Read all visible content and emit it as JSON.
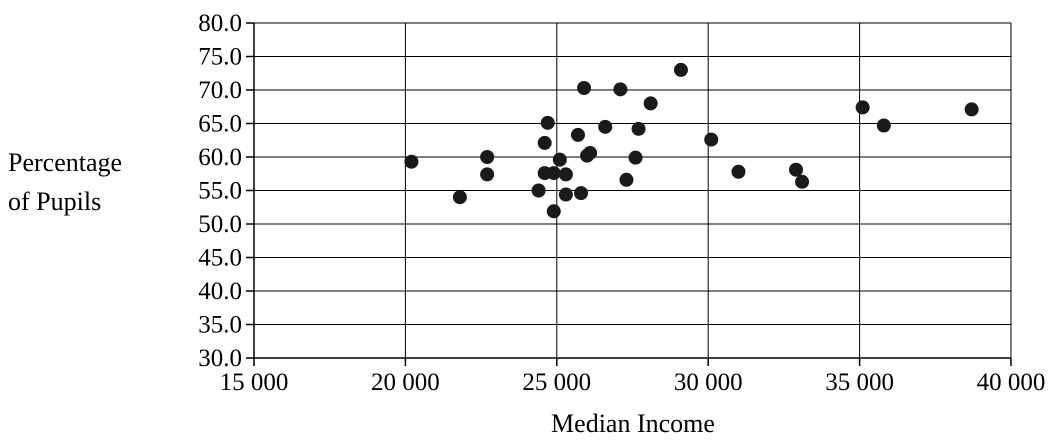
{
  "chart_data": {
    "type": "scatter",
    "xlabel": "Median Income",
    "ylabel_lines": [
      "Percentage",
      "of Pupils"
    ],
    "xlim": [
      15000,
      40000
    ],
    "ylim": [
      30,
      80
    ],
    "x_ticks": [
      15000,
      20000,
      25000,
      30000,
      35000,
      40000
    ],
    "x_tick_labels": [
      "15 000",
      "20 000",
      "25 000",
      "30 000",
      "35 000",
      "40 000"
    ],
    "y_ticks": [
      30,
      35,
      40,
      45,
      50,
      55,
      60,
      65,
      70,
      75,
      80
    ],
    "y_tick_labels": [
      "30.0",
      "35.0",
      "40.0",
      "45.0",
      "50.0",
      "55.0",
      "60.0",
      "65.0",
      "70.0",
      "75.0",
      "80.0"
    ],
    "grid": true,
    "marker_color": "#1a1a1a",
    "points": [
      {
        "x": 20200,
        "y": 59.3
      },
      {
        "x": 21800,
        "y": 54.0
      },
      {
        "x": 22700,
        "y": 60.0
      },
      {
        "x": 22700,
        "y": 57.4
      },
      {
        "x": 24400,
        "y": 55.0
      },
      {
        "x": 24600,
        "y": 62.1
      },
      {
        "x": 24600,
        "y": 57.6
      },
      {
        "x": 24700,
        "y": 65.1
      },
      {
        "x": 24900,
        "y": 57.6
      },
      {
        "x": 24900,
        "y": 51.9
      },
      {
        "x": 25100,
        "y": 59.6
      },
      {
        "x": 25300,
        "y": 57.4
      },
      {
        "x": 25300,
        "y": 54.4
      },
      {
        "x": 25700,
        "y": 63.3
      },
      {
        "x": 25800,
        "y": 54.6
      },
      {
        "x": 25900,
        "y": 70.3
      },
      {
        "x": 26000,
        "y": 60.2
      },
      {
        "x": 26100,
        "y": 60.6
      },
      {
        "x": 26600,
        "y": 64.5
      },
      {
        "x": 27100,
        "y": 70.1
      },
      {
        "x": 27300,
        "y": 56.6
      },
      {
        "x": 27600,
        "y": 59.9
      },
      {
        "x": 27700,
        "y": 64.2
      },
      {
        "x": 28100,
        "y": 68.0
      },
      {
        "x": 29100,
        "y": 73.0
      },
      {
        "x": 30100,
        "y": 62.6
      },
      {
        "x": 31000,
        "y": 57.8
      },
      {
        "x": 32900,
        "y": 58.1
      },
      {
        "x": 33100,
        "y": 56.3
      },
      {
        "x": 35100,
        "y": 67.4
      },
      {
        "x": 35800,
        "y": 64.7
      },
      {
        "x": 38700,
        "y": 67.1
      }
    ]
  }
}
